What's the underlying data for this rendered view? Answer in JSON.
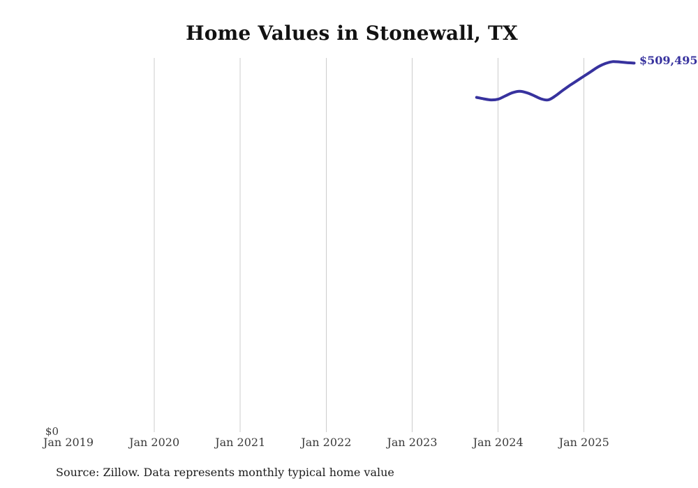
{
  "title": "Home Values in Stonewall, TX",
  "source_note": "Source: Zillow. Data represents monthly typical home value",
  "colors": {
    "line": "#37329e",
    "end_label": "#37329e",
    "grid": "#cccccc",
    "title_text": "#121212",
    "axis_text": "#3a3a3a",
    "background": "#ffffff"
  },
  "chart_data": {
    "type": "line",
    "title": "Home Values in Stonewall, TX",
    "xlabel": "",
    "ylabel": "",
    "y_axis_zero_label": "$0",
    "y_range": [
      0,
      515000
    ],
    "grid": "vertical-only",
    "legend": "none",
    "x_ticks": [
      {
        "label": "Jan 2019",
        "gridline": false
      },
      {
        "label": "Jan 2020",
        "gridline": true
      },
      {
        "label": "Jan 2021",
        "gridline": true
      },
      {
        "label": "Jan 2022",
        "gridline": true
      },
      {
        "label": "Jan 2023",
        "gridline": true
      },
      {
        "label": "Jan 2024",
        "gridline": true
      },
      {
        "label": "Jan 2025",
        "gridline": true
      }
    ],
    "last_value_label": "$509,495",
    "series": [
      {
        "name": "Monthly typical home value",
        "points": [
          {
            "date": "2023-10",
            "value": 462000
          },
          {
            "date": "2023-11",
            "value": 460000
          },
          {
            "date": "2023-12",
            "value": 458500
          },
          {
            "date": "2024-01",
            "value": 459500
          },
          {
            "date": "2024-02",
            "value": 464000
          },
          {
            "date": "2024-03",
            "value": 468500
          },
          {
            "date": "2024-04",
            "value": 470500
          },
          {
            "date": "2024-05",
            "value": 468500
          },
          {
            "date": "2024-06",
            "value": 464500
          },
          {
            "date": "2024-07",
            "value": 460000
          },
          {
            "date": "2024-08",
            "value": 458500
          },
          {
            "date": "2024-09",
            "value": 464000
          },
          {
            "date": "2024-10",
            "value": 471500
          },
          {
            "date": "2024-11",
            "value": 478500
          },
          {
            "date": "2024-12",
            "value": 485000
          },
          {
            "date": "2025-01",
            "value": 491500
          },
          {
            "date": "2025-02",
            "value": 498000
          },
          {
            "date": "2025-03",
            "value": 504500
          },
          {
            "date": "2025-04",
            "value": 509000
          },
          {
            "date": "2025-05",
            "value": 511500
          },
          {
            "date": "2025-06",
            "value": 511000
          },
          {
            "date": "2025-07",
            "value": 510200
          },
          {
            "date": "2025-08",
            "value": 509495
          }
        ]
      }
    ]
  }
}
